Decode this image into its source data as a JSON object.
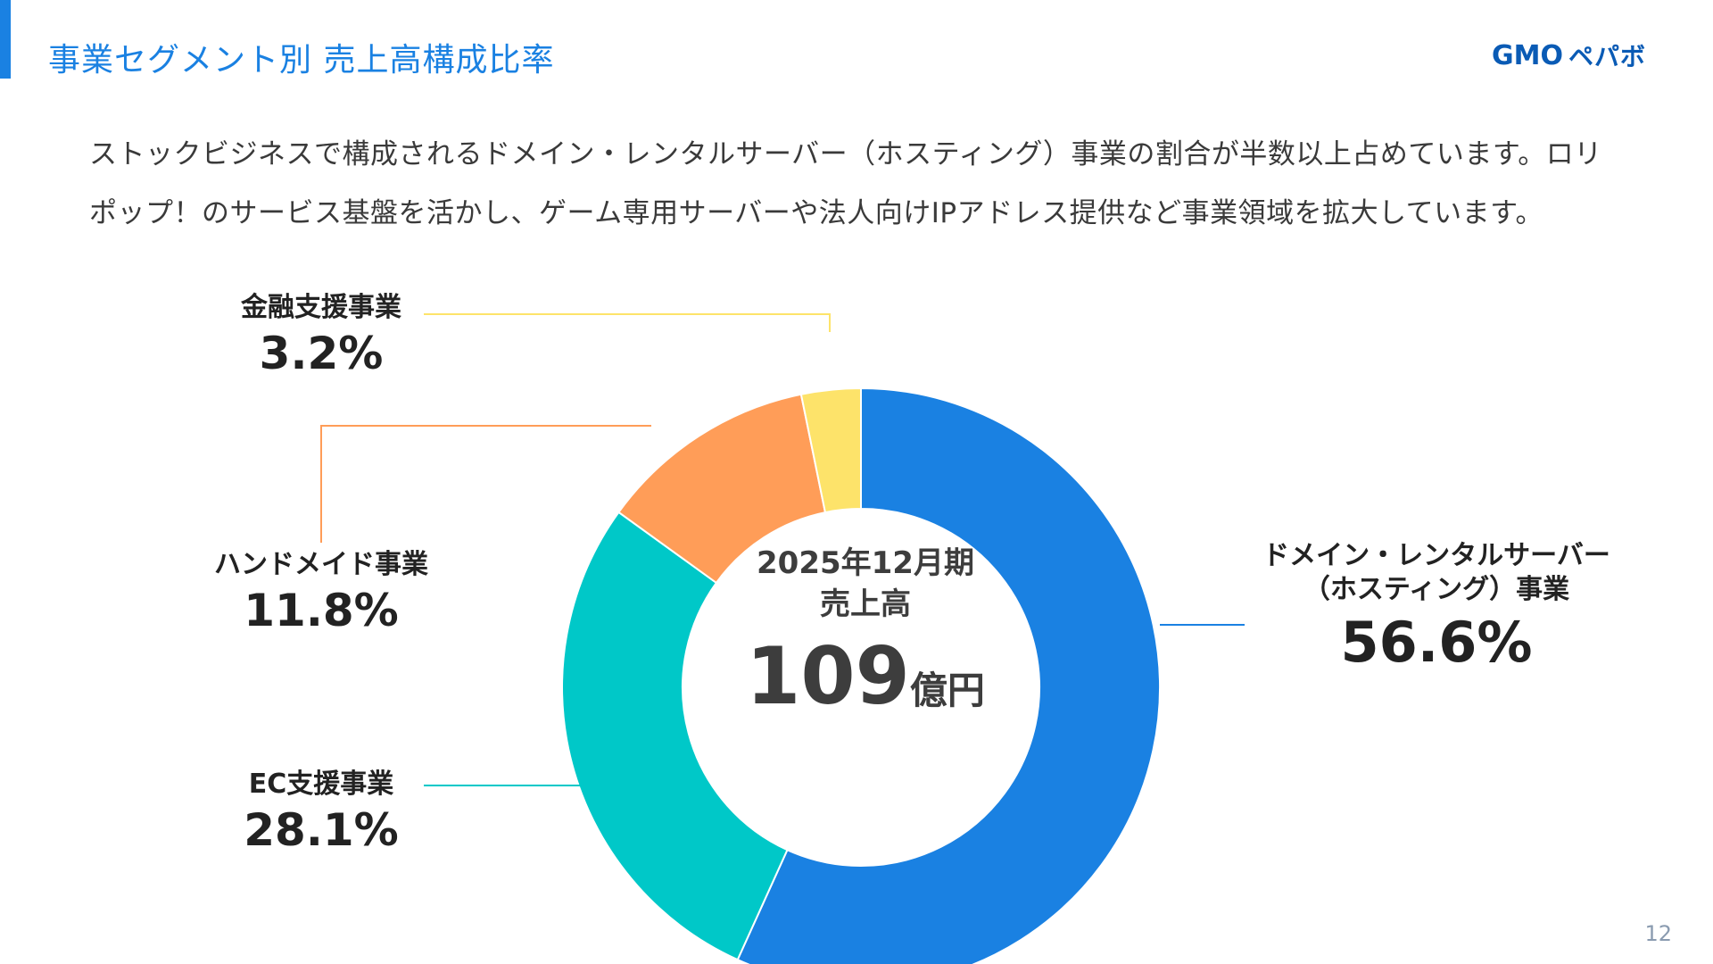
{
  "title": "事業セグメント別 売上高構成比率",
  "logo": {
    "gmo": "GMO",
    "pepabo": "ペパボ"
  },
  "description": [
    "ストックビジネスで構成されるドメイン・レンタルサーバー（ホスティング）事業の割合が半数以上占めています。ロリ",
    "ポップ！のサービス基盤を活かし、ゲーム専用サーバーや法人向けIPアドレス提供など事業領域を拡大しています。"
  ],
  "center": {
    "period": "2025年12月期",
    "metric": "売上高",
    "amount": "109",
    "unit": "億円"
  },
  "labels": {
    "hosting_name_line1": "ドメイン・レンタルサーバー",
    "hosting_name_line2": "（ホスティング）事業",
    "hosting_pct": "56.6%",
    "ec_name": "EC支援事業",
    "ec_pct": "28.1%",
    "handmade_name": "ハンドメイド事業",
    "handmade_pct": "11.8%",
    "finance_name": "金融支援事業",
    "finance_pct": "3.2%"
  },
  "page_number": "12",
  "chart_data": {
    "type": "pie",
    "style": "donut",
    "title": "",
    "categories": [
      "ドメイン・レンタルサーバー（ホスティング）事業",
      "EC支援事業",
      "ハンドメイド事業",
      "金融支援事業"
    ],
    "values": [
      56.6,
      28.1,
      11.8,
      3.2
    ],
    "unit": "%",
    "start_angle_deg": 0,
    "direction": "clockwise",
    "colors": [
      "#1a81e2",
      "#00c8c8",
      "#ff9d58",
      "#fde36a"
    ],
    "leader_line_colors": [
      "#1a81e2",
      "#00c8c8",
      "#ff9d58",
      "#fde36a"
    ],
    "legend": "none"
  }
}
